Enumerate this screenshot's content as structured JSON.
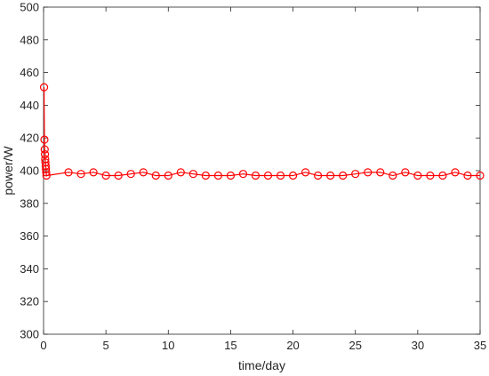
{
  "chart_data": {
    "type": "line",
    "xlabel": "time/day",
    "ylabel": "power/W",
    "xlim": [
      0,
      35
    ],
    "ylim": [
      300,
      500
    ],
    "xticks": [
      0,
      5,
      10,
      15,
      20,
      25,
      30,
      35
    ],
    "yticks": [
      300,
      320,
      340,
      360,
      380,
      400,
      420,
      440,
      460,
      480,
      500
    ],
    "grid": false,
    "legend": "none",
    "series": [
      {
        "color": "#ff0000",
        "marker": "circle",
        "x": [
          0.04,
          0.07,
          0.09,
          0.11,
          0.13,
          0.15,
          0.17,
          0.19,
          0.21,
          0.23,
          2,
          3,
          4,
          5,
          6,
          7,
          8,
          9,
          10,
          11,
          12,
          13,
          14,
          15,
          16,
          17,
          18,
          19,
          20,
          21,
          22,
          23,
          24,
          25,
          26,
          27,
          28,
          29,
          30,
          31,
          32,
          33,
          34,
          35
        ],
        "y": [
          451,
          419,
          413,
          410,
          407,
          405,
          403,
          401,
          399,
          397,
          399,
          398,
          399,
          397,
          397,
          398,
          399,
          397,
          397,
          399,
          398,
          397,
          397,
          397,
          398,
          397,
          397,
          397,
          397,
          399,
          397,
          397,
          397,
          398,
          399,
          399,
          397,
          399,
          397,
          397,
          397,
          399,
          397,
          397
        ]
      }
    ]
  }
}
